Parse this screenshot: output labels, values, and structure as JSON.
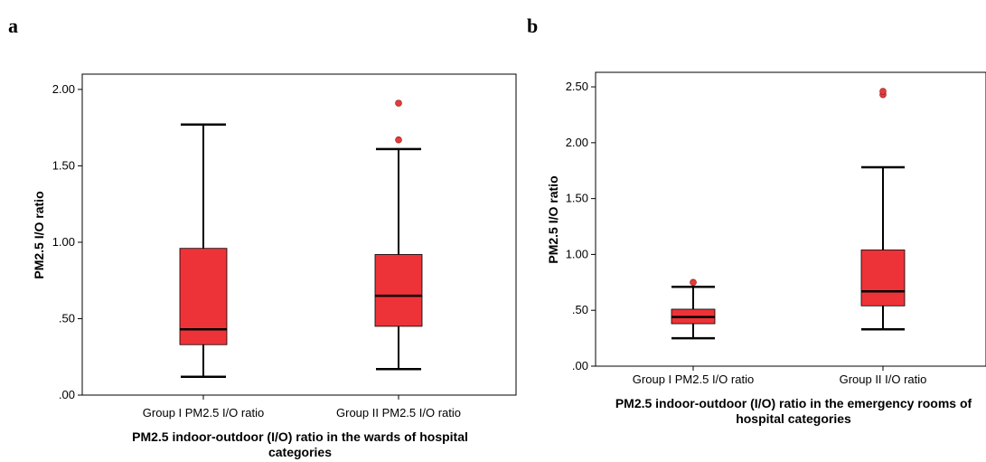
{
  "chart_data": [
    {
      "type": "boxplot",
      "panel_label": "a",
      "xlabel_lines": [
        "PM2.5 indoor-outdoor (I/O) ratio in the wards of hospital",
        "categories"
      ],
      "ylabel": "PM2.5 I/O ratio",
      "ylim": [
        0.0,
        2.1
      ],
      "yticks": [
        {
          "value": 0.0,
          "label": ".00"
        },
        {
          "value": 0.5,
          "label": ".50"
        },
        {
          "value": 1.0,
          "label": "1.00"
        },
        {
          "value": 1.5,
          "label": "1.50"
        },
        {
          "value": 2.0,
          "label": "2.00"
        }
      ],
      "categories": [
        "Group I PM2.5 I/O ratio",
        "Group II PM2.5 I/O ratio"
      ],
      "boxes": [
        {
          "whisker_low": 0.12,
          "q1": 0.33,
          "median": 0.43,
          "q3": 0.96,
          "whisker_high": 1.77,
          "outliers": []
        },
        {
          "whisker_low": 0.17,
          "q1": 0.45,
          "median": 0.65,
          "q3": 0.92,
          "whisker_high": 1.61,
          "outliers": [
            1.67,
            1.91
          ]
        }
      ],
      "box_color": "#ee3338",
      "outlier_color": "#e23c3c",
      "grid": false
    },
    {
      "type": "boxplot",
      "panel_label": "b",
      "xlabel_lines": [
        "PM2.5  indoor-outdoor (I/O) ratio in the emergency rooms of",
        "hospital categories"
      ],
      "ylabel": "PM2.5 I/O ratio",
      "ylim": [
        0.0,
        2.63
      ],
      "yticks": [
        {
          "value": 0.0,
          "label": ".00"
        },
        {
          "value": 0.5,
          "label": ".50"
        },
        {
          "value": 1.0,
          "label": "1.00"
        },
        {
          "value": 1.5,
          "label": "1.50"
        },
        {
          "value": 2.0,
          "label": "2.00"
        },
        {
          "value": 2.5,
          "label": "2.50"
        }
      ],
      "categories": [
        "Group I PM2.5 I/O ratio",
        "Group II I/O ratio"
      ],
      "boxes": [
        {
          "whisker_low": 0.25,
          "q1": 0.38,
          "median": 0.44,
          "q3": 0.51,
          "whisker_high": 0.71,
          "outliers": [
            0.75
          ]
        },
        {
          "whisker_low": 0.33,
          "q1": 0.54,
          "median": 0.67,
          "q3": 1.04,
          "whisker_high": 1.78,
          "outliers": [
            2.43,
            2.46
          ]
        }
      ],
      "box_color": "#ee3338",
      "outlier_color": "#e23c3c",
      "grid": false
    }
  ]
}
